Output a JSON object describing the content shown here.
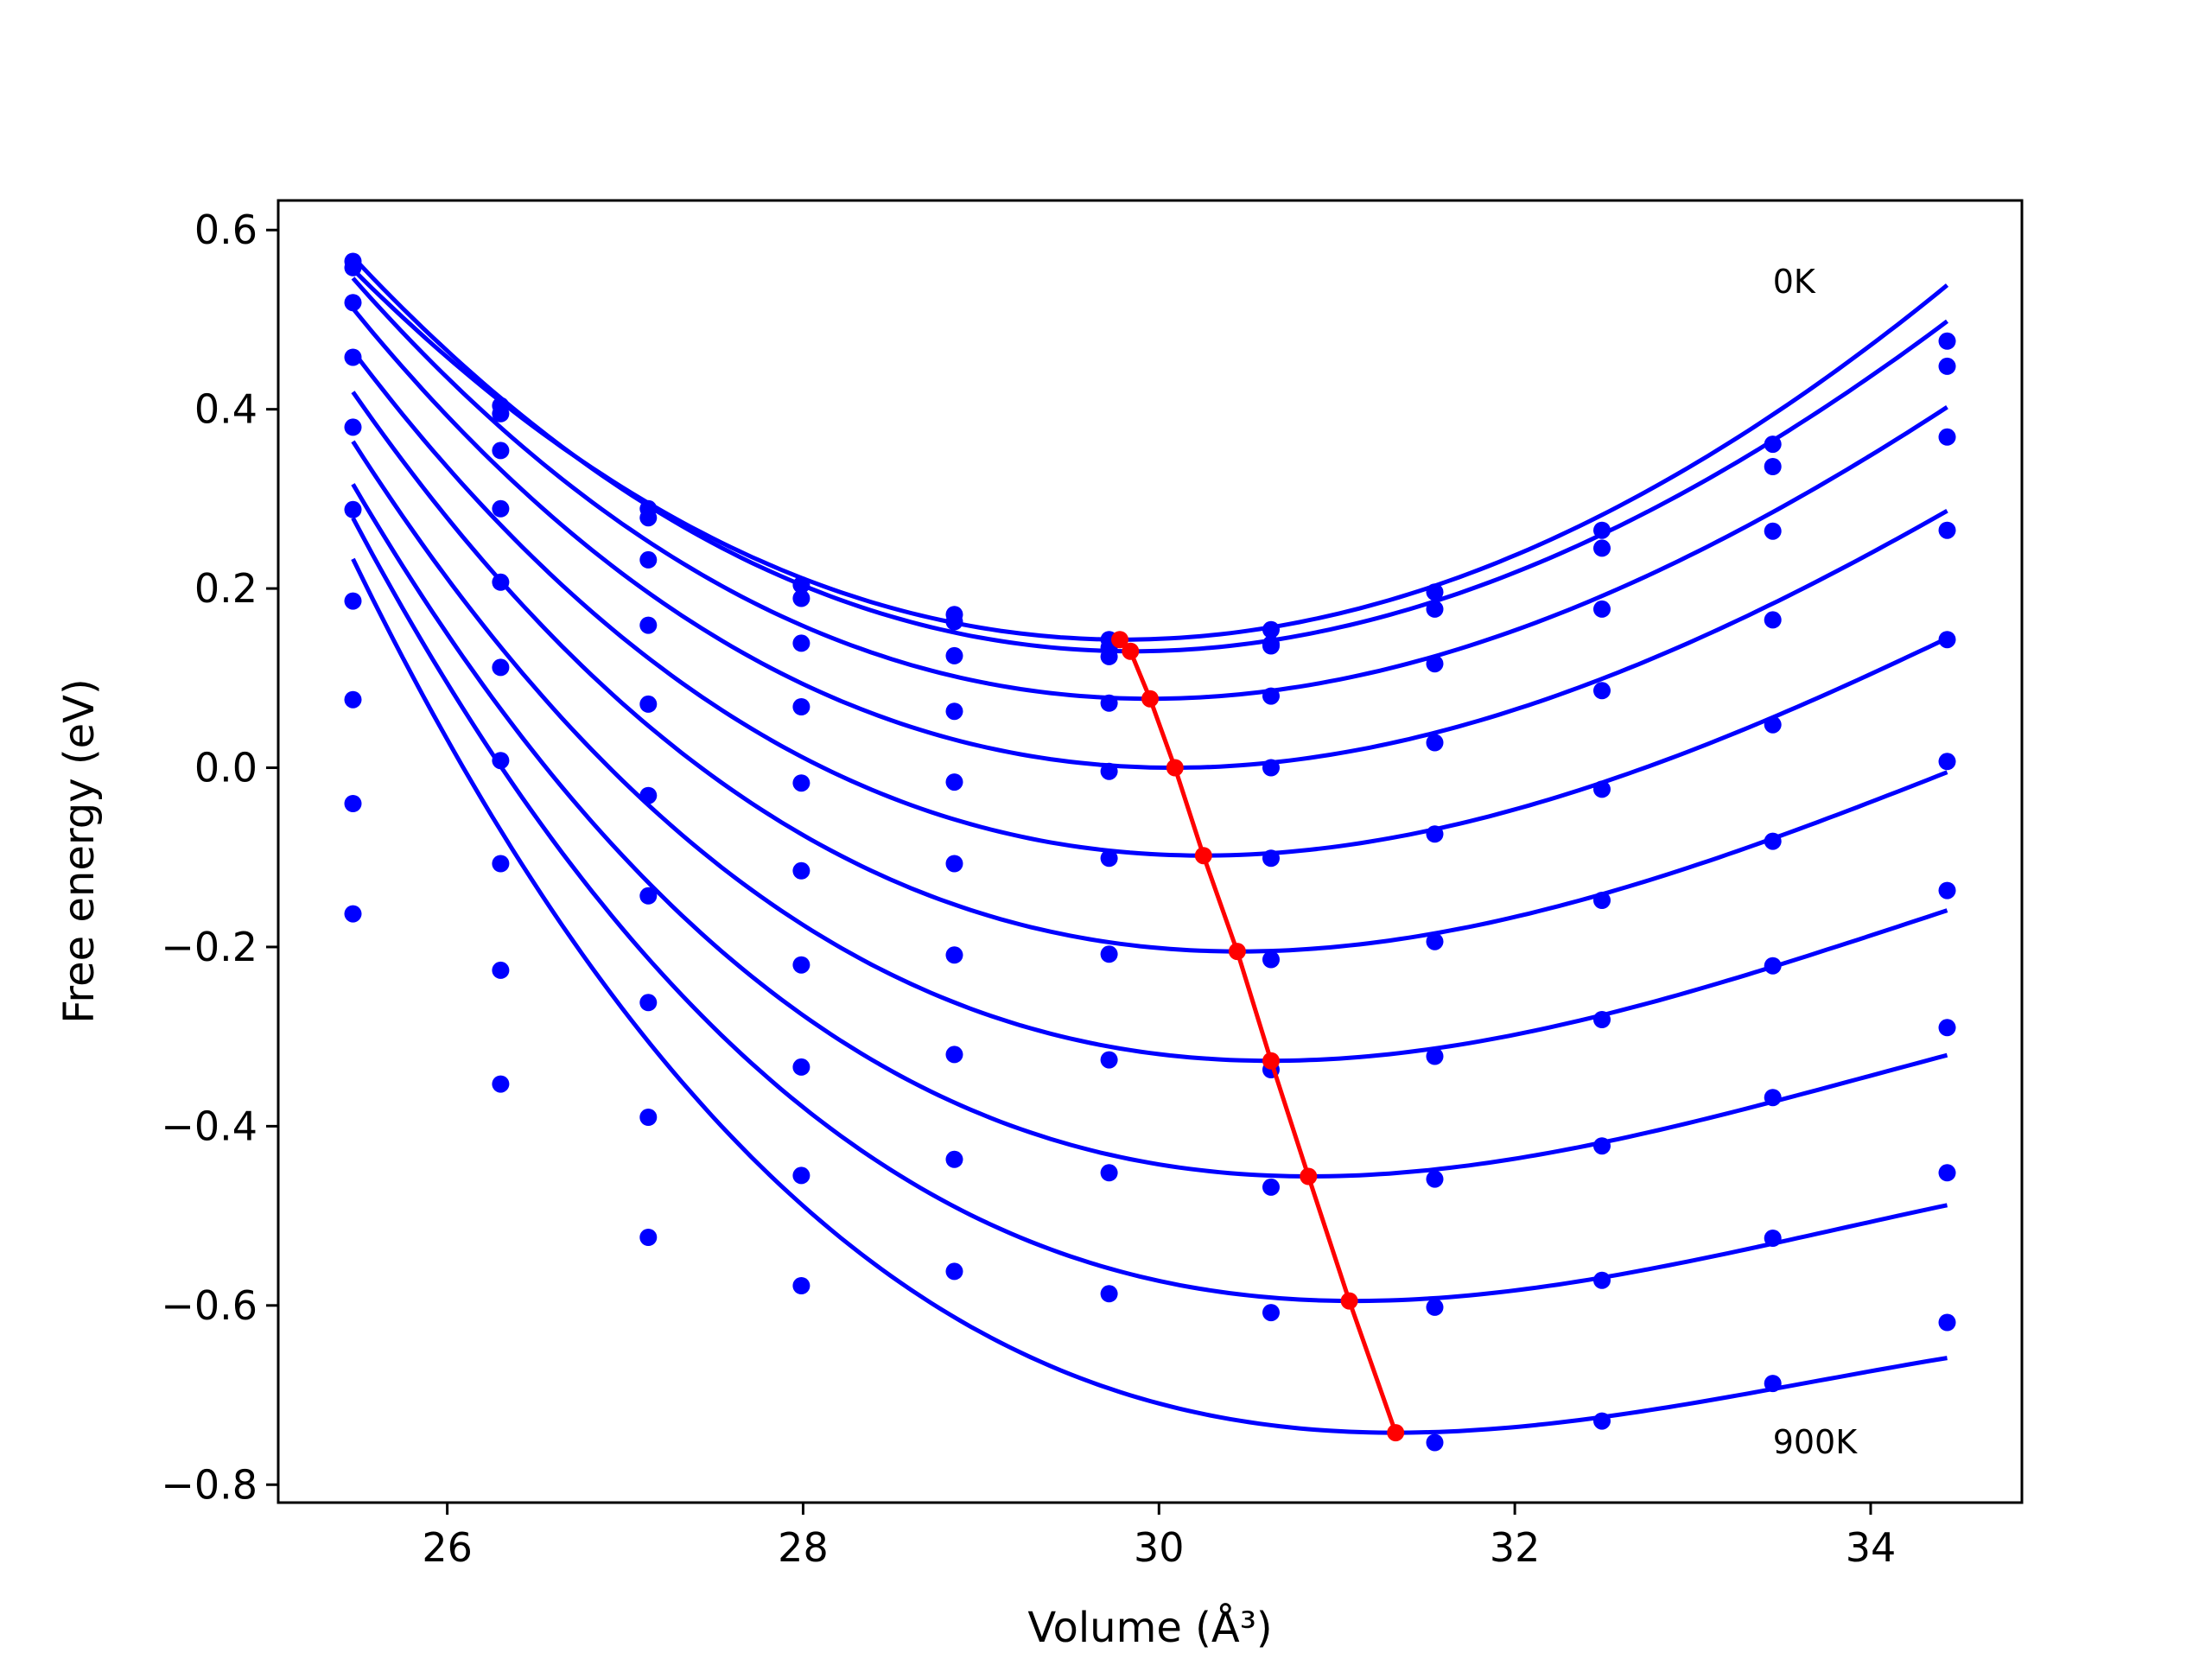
{
  "chart_data": {
    "type": "scatter",
    "xlabel": "Volume (Å³)",
    "ylabel": "Free energy (eV)",
    "xlim": [
      25.05,
      34.85
    ],
    "ylim": [
      -0.82,
      0.633
    ],
    "xticks": [
      26,
      28,
      30,
      32,
      34
    ],
    "yticks": [
      -0.8,
      -0.6,
      -0.4,
      -0.2,
      0.0,
      0.2,
      0.4,
      0.6
    ],
    "xtick_labels": [
      "26",
      "28",
      "30",
      "32",
      "34"
    ],
    "ytick_labels": [
      "−0.8",
      "−0.6",
      "−0.4",
      "−0.2",
      "0.0",
      "0.2",
      "0.4",
      "0.6"
    ],
    "grid": false,
    "legend": false,
    "colors": {
      "data": "#0000ff",
      "minimum": "#ff0000",
      "frame": "#000000"
    },
    "volumes": [
      25.47,
      26.3,
      27.13,
      27.99,
      28.85,
      29.72,
      30.63,
      31.55,
      32.49,
      33.45,
      34.43
    ],
    "series": [
      {
        "values": [
          0.565,
          0.404,
          0.289,
          0.204,
          0.171,
          0.143,
          0.154,
          0.196,
          0.265,
          0.361,
          0.476
        ],
        "fit": {
          "a": 0.0203,
          "v0": 29.8,
          "f0": 0.143,
          "c": 0.0004
        }
      },
      {
        "values": [
          0.558,
          0.395,
          0.279,
          0.189,
          0.163,
          0.134,
          0.138,
          0.177,
          0.245,
          0.336,
          0.448
        ],
        "fit": {
          "a": 0.0203,
          "v0": 29.85,
          "f0": 0.13,
          "c": 0.0006
        }
      },
      {
        "values": [
          0.519,
          0.354,
          0.232,
          0.139,
          0.125,
          0.124,
          0.136,
          0.116,
          0.177,
          0.264,
          0.369
        ],
        "fit": {
          "a": 0.0198,
          "v0": 29.95,
          "f0": 0.077,
          "c": 0.0008
        }
      },
      {
        "values": [
          0.458,
          0.289,
          0.159,
          0.068,
          0.063,
          0.072,
          0.08,
          0.028,
          0.086,
          0.165,
          0.265
        ],
        "fit": {
          "a": 0.0195,
          "v0": 30.08,
          "f0": 0.0,
          "c": 0.001
        }
      },
      {
        "values": [
          0.38,
          0.207,
          0.071,
          -0.017,
          -0.016,
          -0.004,
          0.0,
          -0.074,
          -0.024,
          0.048,
          0.143
        ],
        "fit": {
          "a": 0.0189,
          "v0": 30.25,
          "f0": -0.098,
          "c": 0.0012
        }
      },
      {
        "values": [
          0.288,
          0.112,
          -0.031,
          -0.115,
          -0.107,
          -0.101,
          -0.101,
          -0.194,
          -0.148,
          -0.082,
          0.007
        ],
        "fit": {
          "a": 0.0182,
          "v0": 30.45,
          "f0": -0.205,
          "c": 0.0014
        }
      },
      {
        "values": [
          0.186,
          0.008,
          -0.143,
          -0.22,
          -0.209,
          -0.208,
          -0.214,
          -0.322,
          -0.281,
          -0.221,
          -0.137
        ],
        "fit": {
          "a": 0.0177,
          "v0": 30.63,
          "f0": -0.327,
          "c": 0.0016
        }
      },
      {
        "values": [
          0.076,
          -0.107,
          -0.262,
          -0.334,
          -0.32,
          -0.326,
          -0.337,
          -0.459,
          -0.422,
          -0.368,
          -0.29
        ],
        "fit": {
          "a": 0.017,
          "v0": 30.85,
          "f0": -0.456,
          "c": 0.0018
        }
      },
      {
        "values": [
          -0.04,
          -0.226,
          -0.39,
          -0.455,
          -0.437,
          -0.452,
          -0.468,
          -0.602,
          -0.572,
          -0.525,
          -0.452
        ],
        "fit": {
          "a": 0.0163,
          "v0": 31.1,
          "f0": -0.595,
          "c": 0.002
        }
      },
      {
        "values": [
          -0.163,
          -0.353,
          -0.524,
          -0.578,
          -0.562,
          -0.587,
          -0.608,
          -0.753,
          -0.729,
          -0.687,
          -0.619
        ],
        "fit": {
          "a": 0.0155,
          "v0": 31.33,
          "f0": -0.742,
          "c": 0.0022
        }
      }
    ],
    "minima": [
      {
        "x": 29.78,
        "y": 0.143
      },
      {
        "x": 29.84,
        "y": 0.13
      },
      {
        "x": 29.95,
        "y": 0.077
      },
      {
        "x": 30.09,
        "y": 0.0
      },
      {
        "x": 30.25,
        "y": -0.098
      },
      {
        "x": 30.44,
        "y": -0.205
      },
      {
        "x": 30.63,
        "y": -0.327
      },
      {
        "x": 30.84,
        "y": -0.456
      },
      {
        "x": 31.07,
        "y": -0.595
      },
      {
        "x": 31.33,
        "y": -0.742
      }
    ],
    "annotations": [
      {
        "text": "0K",
        "x": 33.45,
        "y": 0.53
      },
      {
        "text": "900K",
        "x": 33.45,
        "y": -0.765
      }
    ]
  }
}
